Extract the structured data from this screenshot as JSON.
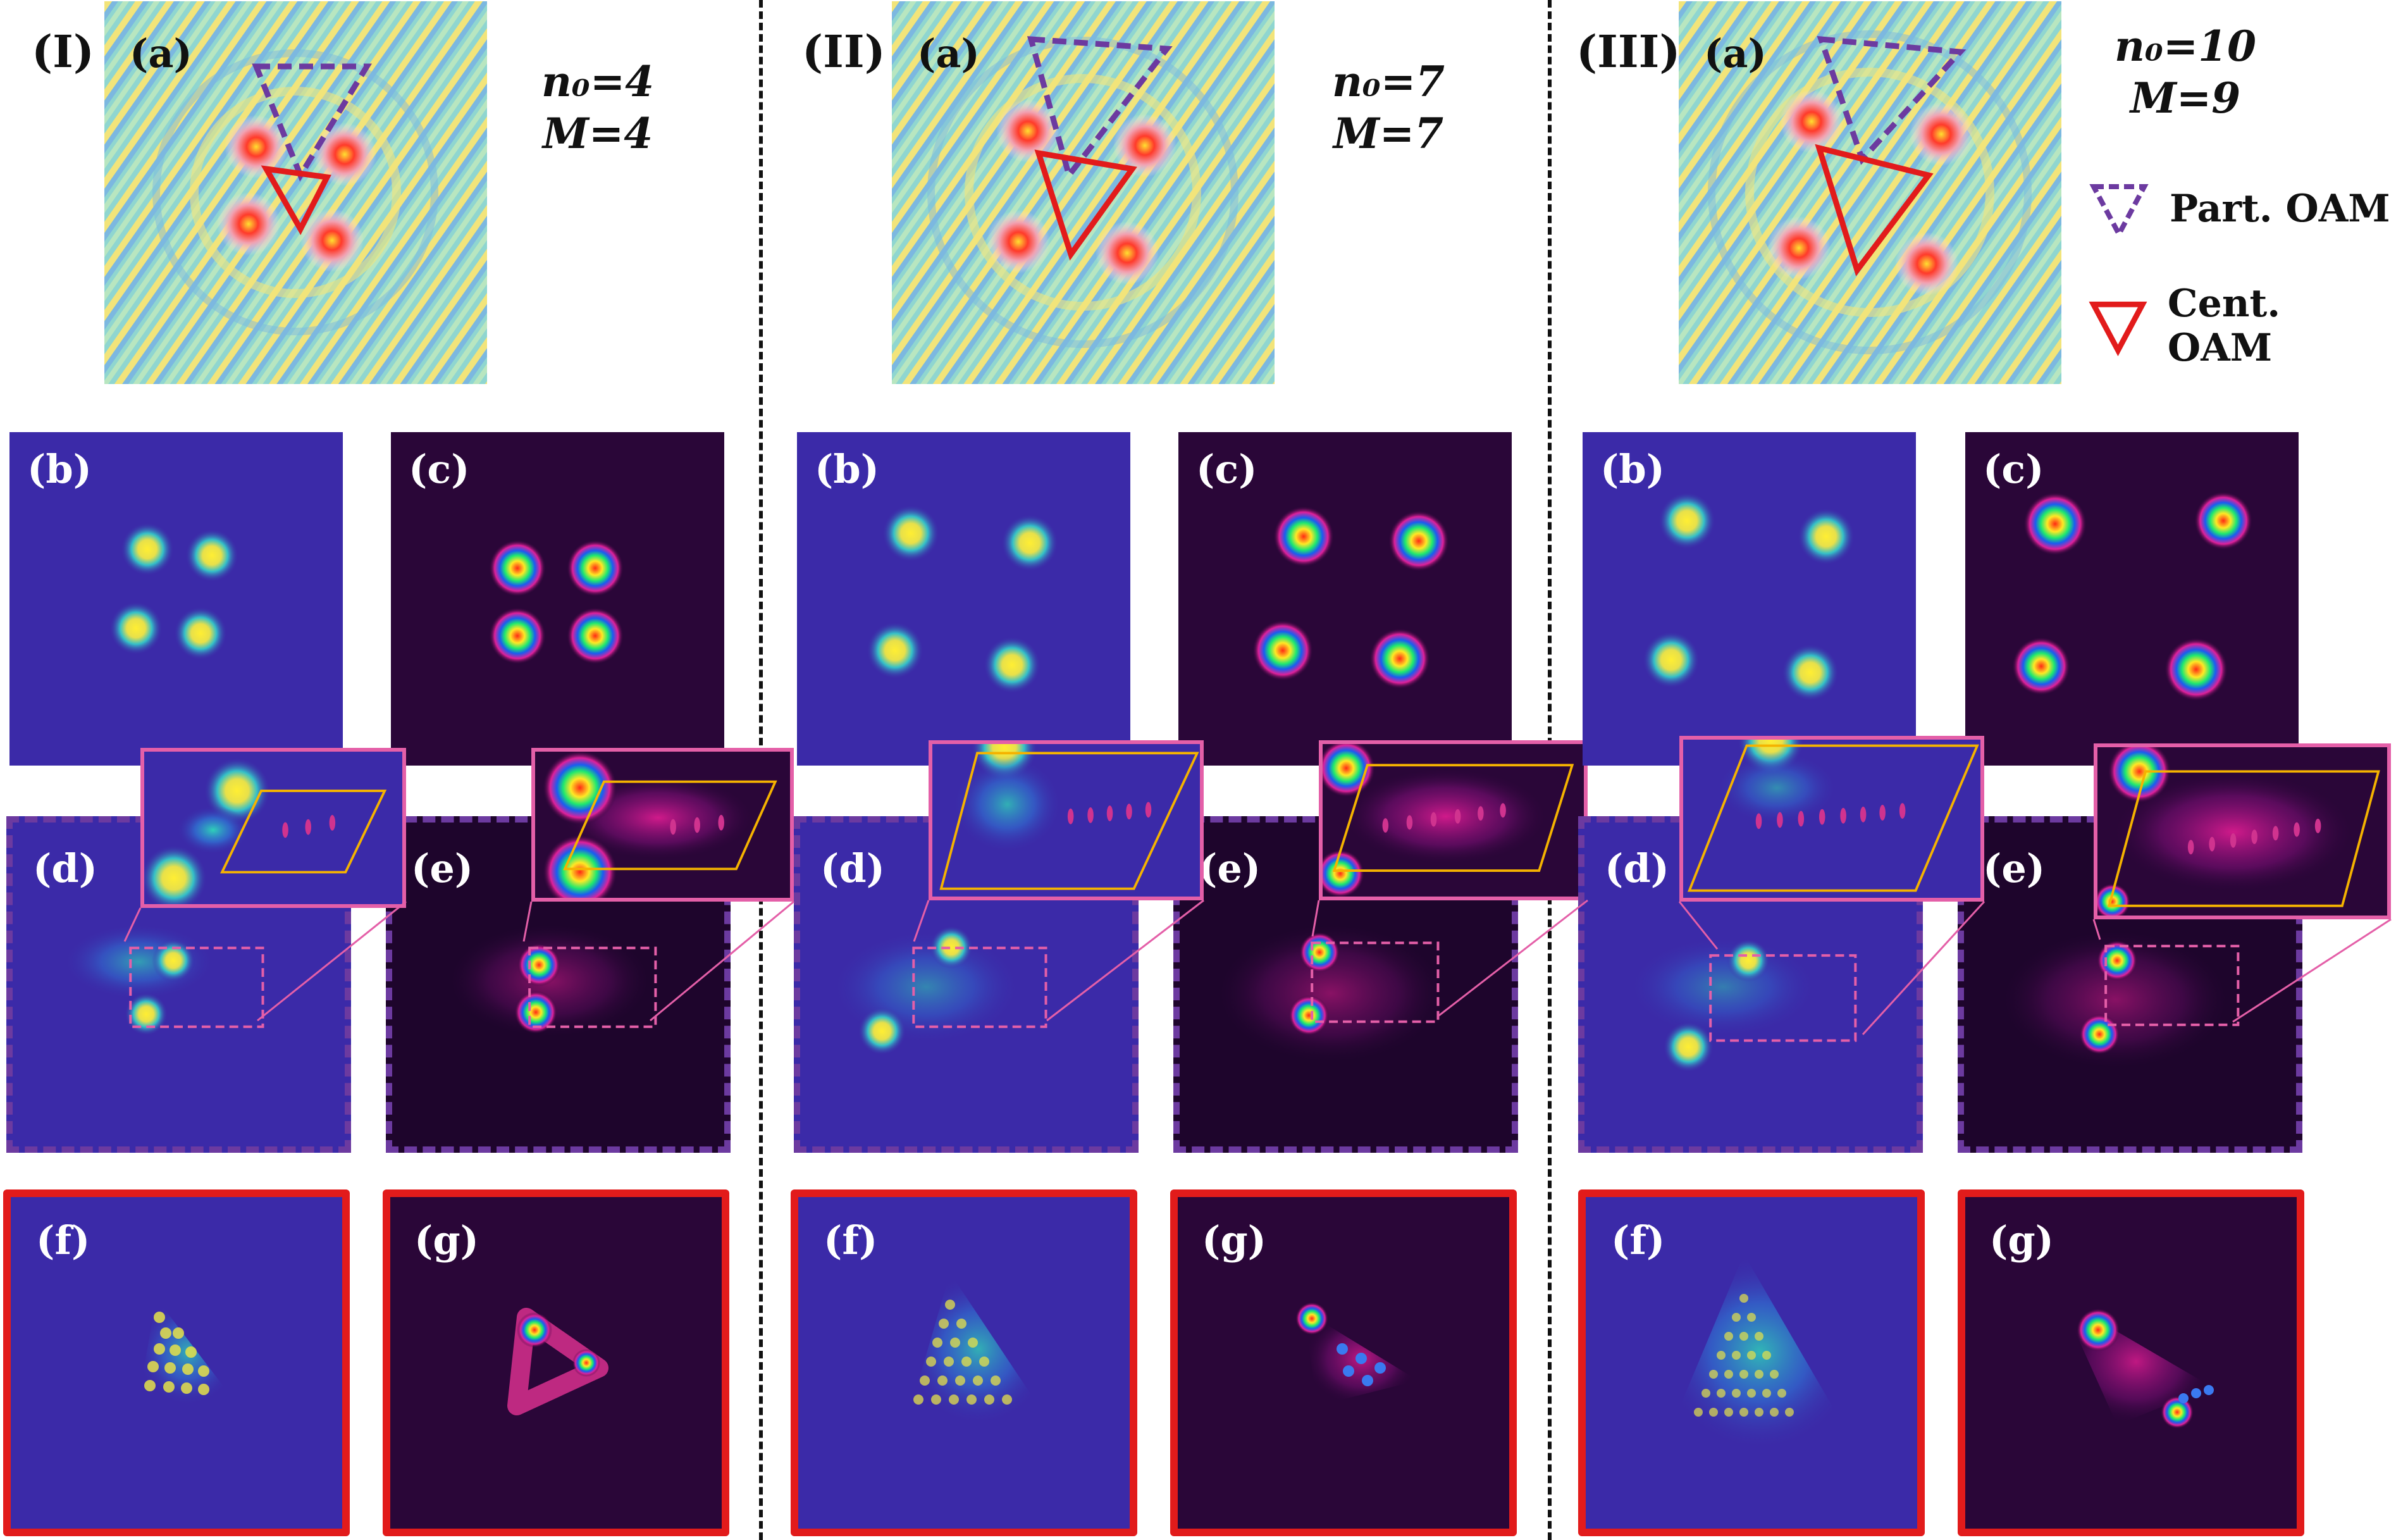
{
  "legend": {
    "partial": "Part. OAM",
    "central": "Cent. OAM",
    "partial_color": "#6c3aa0",
    "central_color": "#e21b1b"
  },
  "colors": {
    "blue_bg": "#3b2aa8",
    "dark_bg": "#2a0638",
    "inset_border": "#e45fa8",
    "parallelogram": "#f5b300"
  },
  "columns": [
    {
      "roman": "(I)",
      "n0": "n₀=4",
      "M": "M=4",
      "labels": {
        "a": "(a)",
        "b": "(b)",
        "c": "(c)",
        "d": "(d)",
        "e": "(e)",
        "f": "(f)",
        "g": "(g)"
      }
    },
    {
      "roman": "(II)",
      "n0": "n₀=7",
      "M": "M=7",
      "labels": {
        "a": "(a)",
        "b": "(b)",
        "c": "(c)",
        "d": "(d)",
        "e": "(e)",
        "f": "(f)",
        "g": "(g)"
      }
    },
    {
      "roman": "(III)",
      "n0": "n₀=10",
      "M": "M=9",
      "labels": {
        "a": "(a)",
        "b": "(b)",
        "c": "(c)",
        "d": "(d)",
        "e": "(e)",
        "f": "(f)",
        "g": "(g)"
      }
    }
  ]
}
